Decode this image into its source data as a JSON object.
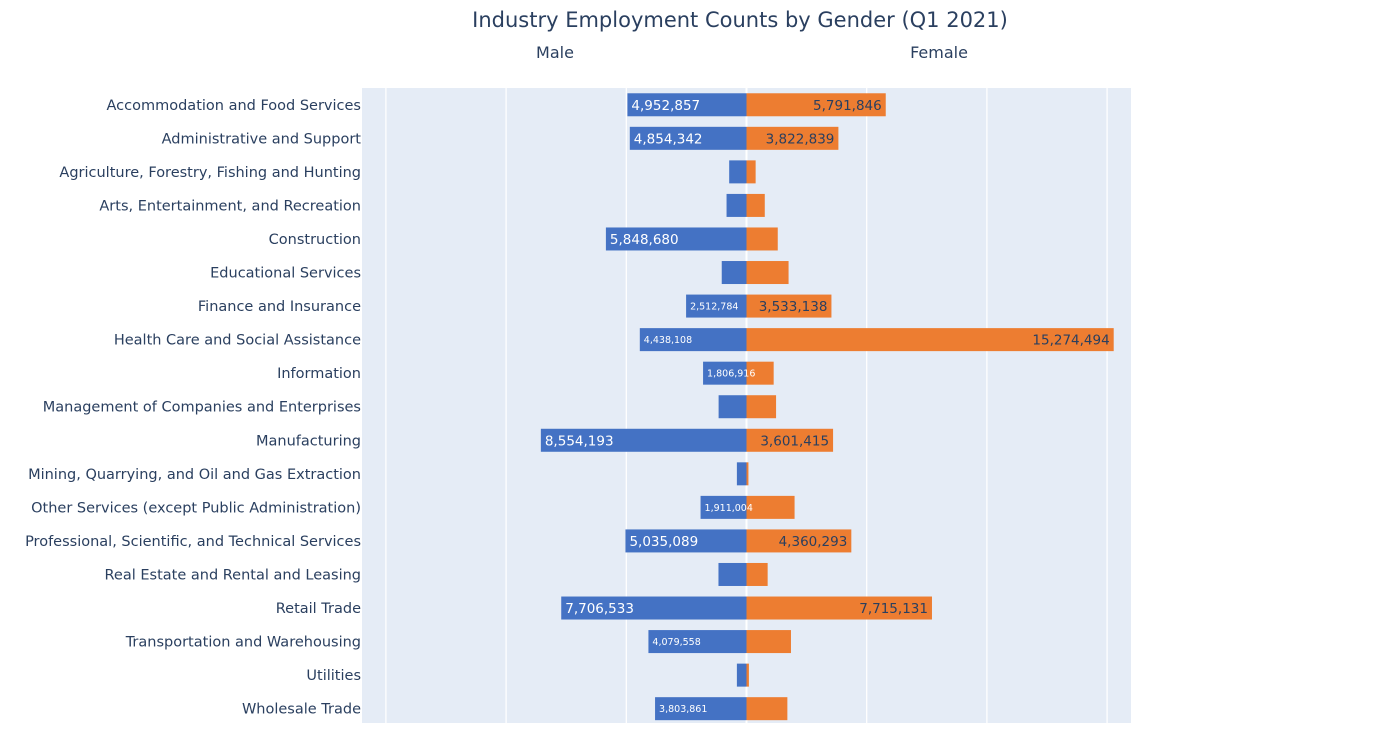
{
  "chart_data": {
    "type": "bar",
    "orientation": "horizontal-diverging",
    "title": "Industry Employment Counts by Gender (Q1 2021)",
    "facets": [
      "Male",
      "Female"
    ],
    "categories": [
      "Accommodation and Food Services",
      "Administrative and Support",
      "Agriculture, Forestry, Fishing and Hunting",
      "Arts, Entertainment, and Recreation",
      "Construction",
      "Educational Services",
      "Finance and Insurance",
      "Health Care and Social Assistance",
      "Information",
      "Management of Companies and Enterprises",
      "Manufacturing",
      "Mining, Quarrying, and Oil and Gas Extraction",
      "Other Services (except Public Administration)",
      "Professional, Scientific, and Technical Services",
      "Real Estate and Rental and Leasing",
      "Retail Trade",
      "Transportation and Warehousing",
      "Utilities",
      "Wholesale Trade"
    ],
    "series": [
      {
        "name": "Male",
        "color": "#4472c4",
        "values": [
          4952857,
          4854342,
          720000,
          830000,
          5848680,
          1030000,
          2512784,
          4438108,
          1806916,
          1160000,
          8554193,
          400000,
          1911004,
          5035089,
          1166000,
          7706533,
          4079558,
          400000,
          3803861
        ],
        "labels": [
          "4,952,857",
          "4,854,342",
          "",
          "",
          "5,848,680",
          "",
          "2,512,784",
          "4,438,108",
          "1,806,916",
          "",
          "8,554,193",
          "",
          "1,911,004",
          "5,035,089",
          "",
          "7,706,533",
          "4,079,558",
          "",
          "3,803,861"
        ]
      },
      {
        "name": "Female",
        "color": "#ed7d31",
        "values": [
          5791846,
          3822839,
          380000,
          760000,
          1300000,
          1750000,
          3533138,
          15274494,
          1130000,
          1230000,
          3601415,
          80000,
          2000000,
          4360293,
          880000,
          7715131,
          1850000,
          100000,
          1700000
        ],
        "labels": [
          "5,791,846",
          "3,822,839",
          "",
          "",
          "",
          "",
          "3,533,138",
          "15,274,494",
          "",
          "",
          "3,601,415",
          "",
          "",
          "4,360,293",
          "",
          "7,715,131",
          "",
          "",
          ""
        ]
      }
    ],
    "grid": true
  }
}
